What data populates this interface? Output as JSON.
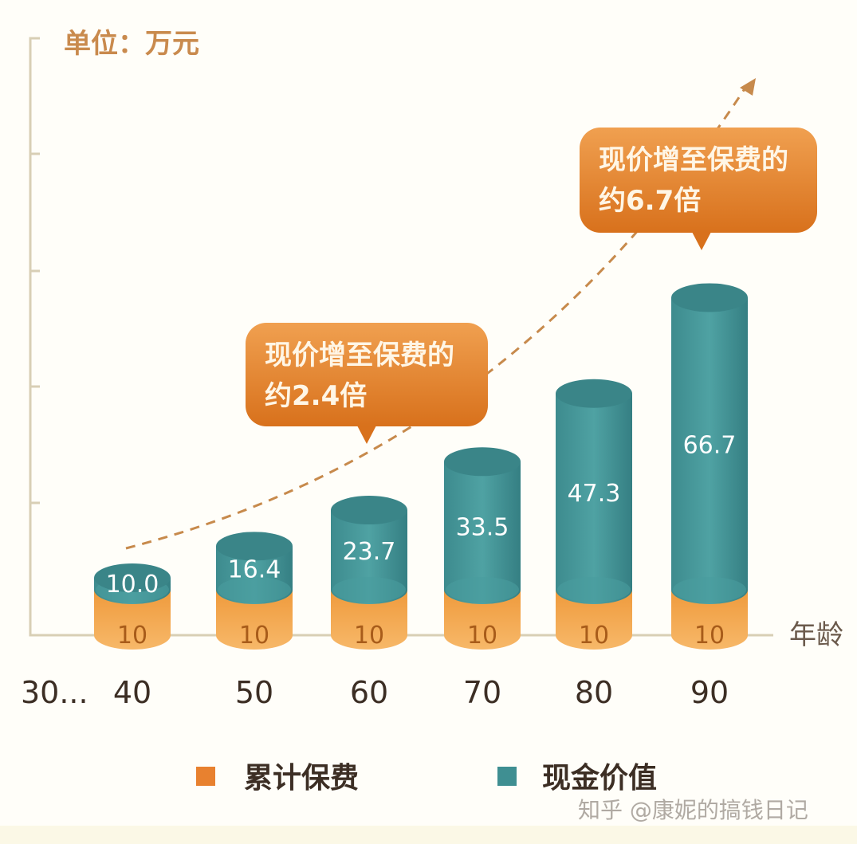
{
  "chart_data": {
    "type": "bar",
    "style": "stacked 3D cylinders",
    "unit_label": "单位：万元",
    "xlabel": "年龄",
    "ylabel": "",
    "x_prefix_label": "30...",
    "categories": [
      "40",
      "50",
      "60",
      "70",
      "80",
      "90"
    ],
    "series": [
      {
        "name": "累计保费",
        "color": "#ef9a3c",
        "values": [
          10,
          10,
          10,
          10,
          10,
          10
        ],
        "labels": [
          "10",
          "10",
          "10",
          "10",
          "10",
          "10"
        ]
      },
      {
        "name": "现金价值",
        "color": "#3f8f92",
        "values": [
          10.0,
          16.4,
          23.7,
          33.5,
          47.3,
          66.7
        ],
        "labels": [
          "10.0",
          "16.4",
          "23.7",
          "33.5",
          "47.3",
          "66.7"
        ]
      }
    ],
    "grid": false,
    "legend_position": "bottom",
    "trend_arrow": "dashed curve rising to upper right",
    "annotations": [
      {
        "line1": "现价增至保费的",
        "line2": "约2.4倍",
        "color": "#e0812a"
      },
      {
        "line1": "现价增至保费的",
        "line2": "约6.7倍",
        "color": "#e0812a"
      }
    ]
  },
  "watermark": "知乎 @康妮的搞钱日记"
}
